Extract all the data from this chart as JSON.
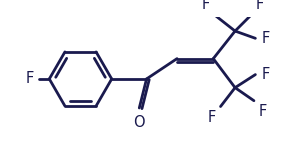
{
  "bg_color": "#ffffff",
  "line_color": "#1a1a4e",
  "line_width": 2.0,
  "font_size": 10.5,
  "font_color": "#1a1a4e",
  "xlim": [
    -1.1,
    2.85
  ],
  "ylim": [
    -0.95,
    0.85
  ]
}
